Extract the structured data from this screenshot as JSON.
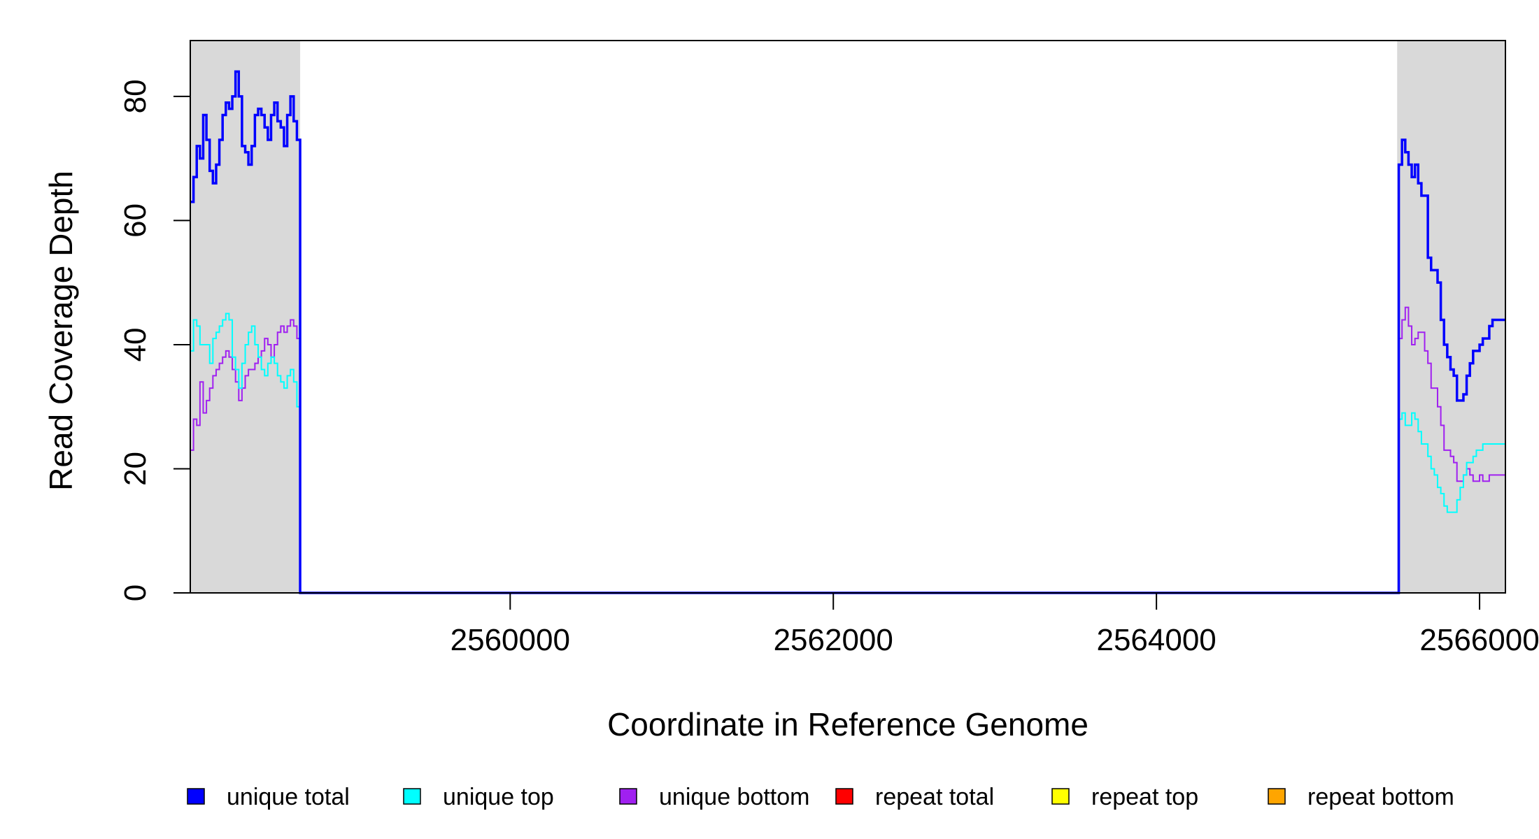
{
  "chart_data": {
    "type": "line",
    "xlabel": "Coordinate in Reference Genome",
    "ylabel": "Read Coverage Depth",
    "xlim": [
      2558020,
      2566160
    ],
    "ylim": [
      0,
      89
    ],
    "x_ticks": [
      2560000,
      2562000,
      2564000,
      2566000
    ],
    "x_tick_labels": [
      "2560000",
      "2562000",
      "2564000",
      "2566000"
    ],
    "y_ticks": [
      0,
      20,
      40,
      60,
      80
    ],
    "y_tick_labels": [
      "0",
      "20",
      "40",
      "60",
      "80"
    ],
    "shaded_regions": [
      [
        2558020,
        2558700
      ],
      [
        2565490,
        2566160
      ]
    ],
    "shade_color": "#d9d9d9",
    "legend_position": "bottom",
    "series": [
      {
        "name": "unique total",
        "color": "#0000ff",
        "x": [
          2558020,
          2558040,
          2558060,
          2558080,
          2558100,
          2558120,
          2558140,
          2558160,
          2558180,
          2558200,
          2558220,
          2558240,
          2558260,
          2558280,
          2558300,
          2558320,
          2558340,
          2558360,
          2558380,
          2558400,
          2558420,
          2558440,
          2558460,
          2558480,
          2558500,
          2558520,
          2558540,
          2558560,
          2558580,
          2558600,
          2558620,
          2558640,
          2558660,
          2558680,
          2558700,
          2558720,
          2565480,
          2565500,
          2565520,
          2565540,
          2565560,
          2565580,
          2565600,
          2565620,
          2565640,
          2565660,
          2565680,
          2565700,
          2565720,
          2565740,
          2565760,
          2565780,
          2565800,
          2565820,
          2565840,
          2565860,
          2565880,
          2565900,
          2565920,
          2565940,
          2565960,
          2565980,
          2566000,
          2566020,
          2566040,
          2566060,
          2566080,
          2566100,
          2566120,
          2566140,
          2566160
        ],
        "y": [
          63,
          67,
          72,
          70,
          77,
          73,
          68,
          66,
          69,
          73,
          77,
          79,
          78,
          80,
          84,
          80,
          72,
          71,
          69,
          72,
          77,
          78,
          77,
          75,
          73,
          77,
          79,
          76,
          75,
          72,
          77,
          80,
          76,
          73,
          0,
          0,
          0,
          69,
          73,
          71,
          69,
          67,
          69,
          66,
          64,
          64,
          54,
          52,
          52,
          50,
          44,
          40,
          38,
          36,
          35,
          31,
          31,
          32,
          35,
          37,
          39,
          39,
          40,
          41,
          41,
          43,
          44,
          44,
          44,
          44,
          44
        ]
      },
      {
        "name": "unique top",
        "color": "#00ffff",
        "x": [
          2558020,
          2558040,
          2558060,
          2558080,
          2558100,
          2558120,
          2558140,
          2558160,
          2558180,
          2558200,
          2558220,
          2558240,
          2558260,
          2558280,
          2558300,
          2558320,
          2558340,
          2558360,
          2558380,
          2558400,
          2558420,
          2558440,
          2558460,
          2558480,
          2558500,
          2558520,
          2558540,
          2558560,
          2558580,
          2558600,
          2558620,
          2558640,
          2558660,
          2558680,
          2558700,
          2558720,
          2565480,
          2565500,
          2565520,
          2565540,
          2565560,
          2565580,
          2565600,
          2565620,
          2565640,
          2565660,
          2565680,
          2565700,
          2565720,
          2565740,
          2565760,
          2565780,
          2565800,
          2565820,
          2565840,
          2565860,
          2565880,
          2565900,
          2565920,
          2565940,
          2565960,
          2565980,
          2566000,
          2566020,
          2566040,
          2566060,
          2566080,
          2566100,
          2566120,
          2566140,
          2566160
        ],
        "y": [
          39,
          44,
          43,
          40,
          40,
          40,
          37,
          41,
          42,
          43,
          44,
          45,
          44,
          38,
          36,
          33,
          37,
          40,
          42,
          43,
          40,
          38,
          36,
          35,
          37,
          38,
          37,
          35,
          34,
          33,
          35,
          36,
          34,
          30,
          0,
          0,
          0,
          28,
          29,
          27,
          27,
          29,
          28,
          26,
          24,
          24,
          22,
          20,
          19,
          17,
          16,
          14,
          13,
          13,
          13,
          15,
          17,
          19,
          21,
          21,
          22,
          23,
          23,
          24,
          24,
          24,
          24,
          24,
          24,
          24,
          24
        ]
      },
      {
        "name": "unique bottom",
        "color": "#a020f0",
        "x": [
          2558020,
          2558040,
          2558060,
          2558080,
          2558100,
          2558120,
          2558140,
          2558160,
          2558180,
          2558200,
          2558220,
          2558240,
          2558260,
          2558280,
          2558300,
          2558320,
          2558340,
          2558360,
          2558380,
          2558400,
          2558420,
          2558440,
          2558460,
          2558480,
          2558500,
          2558520,
          2558540,
          2558560,
          2558580,
          2558600,
          2558620,
          2558640,
          2558660,
          2558680,
          2558700,
          2558720,
          2565480,
          2565500,
          2565520,
          2565540,
          2565560,
          2565580,
          2565600,
          2565620,
          2565640,
          2565660,
          2565680,
          2565700,
          2565720,
          2565740,
          2565760,
          2565780,
          2565800,
          2565820,
          2565840,
          2565860,
          2565880,
          2565900,
          2565920,
          2565940,
          2565960,
          2565980,
          2566000,
          2566020,
          2566040,
          2566060,
          2566080,
          2566100,
          2566120,
          2566140,
          2566160
        ],
        "y": [
          23,
          28,
          27,
          34,
          29,
          31,
          33,
          35,
          36,
          37,
          38,
          39,
          38,
          36,
          34,
          31,
          33,
          35,
          36,
          36,
          37,
          38,
          39,
          41,
          40,
          38,
          40,
          42,
          43,
          42,
          43,
          44,
          43,
          41,
          0,
          0,
          0,
          41,
          44,
          46,
          43,
          40,
          41,
          42,
          42,
          39,
          37,
          33,
          33,
          30,
          27,
          23,
          23,
          22,
          21,
          18,
          18,
          19,
          20,
          19,
          18,
          18,
          19,
          18,
          18,
          19,
          19,
          19,
          19,
          19,
          19
        ]
      },
      {
        "name": "repeat total",
        "color": "#ff0000",
        "x": [
          2558020,
          2566160
        ],
        "y": [
          0,
          0
        ]
      },
      {
        "name": "repeat top",
        "color": "#ffff00",
        "x": [
          2558020,
          2566160
        ],
        "y": [
          0,
          0
        ]
      },
      {
        "name": "repeat bottom",
        "color": "#ffa500",
        "x": [
          2558020,
          2566160
        ],
        "y": [
          0,
          0
        ]
      }
    ]
  }
}
